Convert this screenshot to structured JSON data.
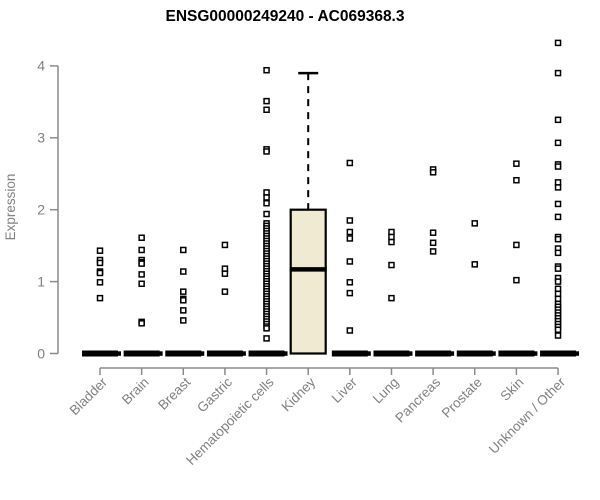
{
  "chart_data": {
    "type": "boxplot",
    "title": "ENSG00000249240 - AC069368.3",
    "ylabel": "Expression",
    "ylim": [
      0,
      4.35
    ],
    "yticks": [
      0,
      1,
      2,
      3,
      4
    ],
    "grid": false,
    "legend": false,
    "colors": {
      "box_fill": "#f0ead3",
      "box_stroke": "#000000",
      "marker_stroke": "#000000",
      "marker_fill": "#ffffff",
      "zero_bar": "#000000",
      "axis_line": "#8a8a8a",
      "axis_text": "#808080",
      "title": "#000000"
    },
    "categories": [
      "Bladder",
      "Brain",
      "Breast",
      "Gastric",
      "Hematopoietic cells",
      "Kidney",
      "Liver",
      "Lung",
      "Pancreas",
      "Prostate",
      "Skin",
      "Unknown / Other"
    ],
    "series": [
      {
        "name": "Bladder",
        "median_bar": 0,
        "points": [
          1.43,
          1.3,
          1.26,
          1.14,
          1.12,
          0.99,
          0.77
        ]
      },
      {
        "name": "Brain",
        "median_bar": 0,
        "points": [
          1.61,
          1.44,
          1.3,
          1.27,
          1.25,
          1.1,
          0.97,
          0.44,
          0.42
        ]
      },
      {
        "name": "Breast",
        "median_bar": 0,
        "points": [
          1.44,
          1.14,
          0.86,
          0.76,
          0.74,
          0.6,
          0.46
        ]
      },
      {
        "name": "Gastric",
        "median_bar": 0,
        "points": [
          1.51,
          1.18,
          1.11,
          0.86
        ]
      },
      {
        "name": "Hematopoietic cells",
        "median_bar": 0,
        "points": [
          3.94,
          3.51,
          3.39,
          2.84,
          2.81,
          2.24,
          2.17,
          2.09,
          1.94,
          1.81,
          1.775,
          1.74,
          1.705,
          1.67,
          1.635,
          1.6,
          1.565,
          1.53,
          1.495,
          1.46,
          1.425,
          1.39,
          1.355,
          1.32,
          1.285,
          1.25,
          1.215,
          1.18,
          1.145,
          1.11,
          1.075,
          1.04,
          1.005,
          0.97,
          0.935,
          0.9,
          0.865,
          0.83,
          0.795,
          0.76,
          0.725,
          0.69,
          0.655,
          0.62,
          0.585,
          0.55,
          0.515,
          0.48,
          0.445,
          0.41,
          0.375,
          0.35,
          0.21
        ]
      },
      {
        "name": "Kidney",
        "box": {
          "q1": 0,
          "median": 1.17,
          "q3": 2.0,
          "whisker_low": 0,
          "whisker_high": 3.9
        },
        "points": []
      },
      {
        "name": "Liver",
        "median_bar": 0,
        "points": [
          2.65,
          1.85,
          1.69,
          1.6,
          1.28,
          0.99,
          0.84,
          0.32
        ]
      },
      {
        "name": "Lung",
        "median_bar": 0,
        "points": [
          1.69,
          1.62,
          1.55,
          1.23,
          0.77
        ]
      },
      {
        "name": "Pancreas",
        "median_bar": 0,
        "points": [
          2.56,
          2.52,
          1.68,
          1.54,
          1.42
        ]
      },
      {
        "name": "Prostate",
        "median_bar": 0,
        "points": [
          1.81,
          1.24
        ]
      },
      {
        "name": "Skin",
        "median_bar": 0,
        "points": [
          2.64,
          2.41,
          1.51,
          1.02
        ]
      },
      {
        "name": "Unknown / Other",
        "median_bar": 0,
        "points": [
          4.32,
          3.9,
          3.25,
          2.93,
          2.63,
          2.6,
          2.38,
          2.31,
          2.08,
          1.9,
          1.62,
          1.59,
          1.46,
          1.4,
          1.21,
          1.18,
          1.05,
          1.0,
          0.9,
          0.83,
          0.76,
          0.69,
          0.65,
          0.61,
          0.57,
          0.53,
          0.49,
          0.45,
          0.41,
          0.37,
          0.33,
          0.25
        ]
      }
    ]
  }
}
